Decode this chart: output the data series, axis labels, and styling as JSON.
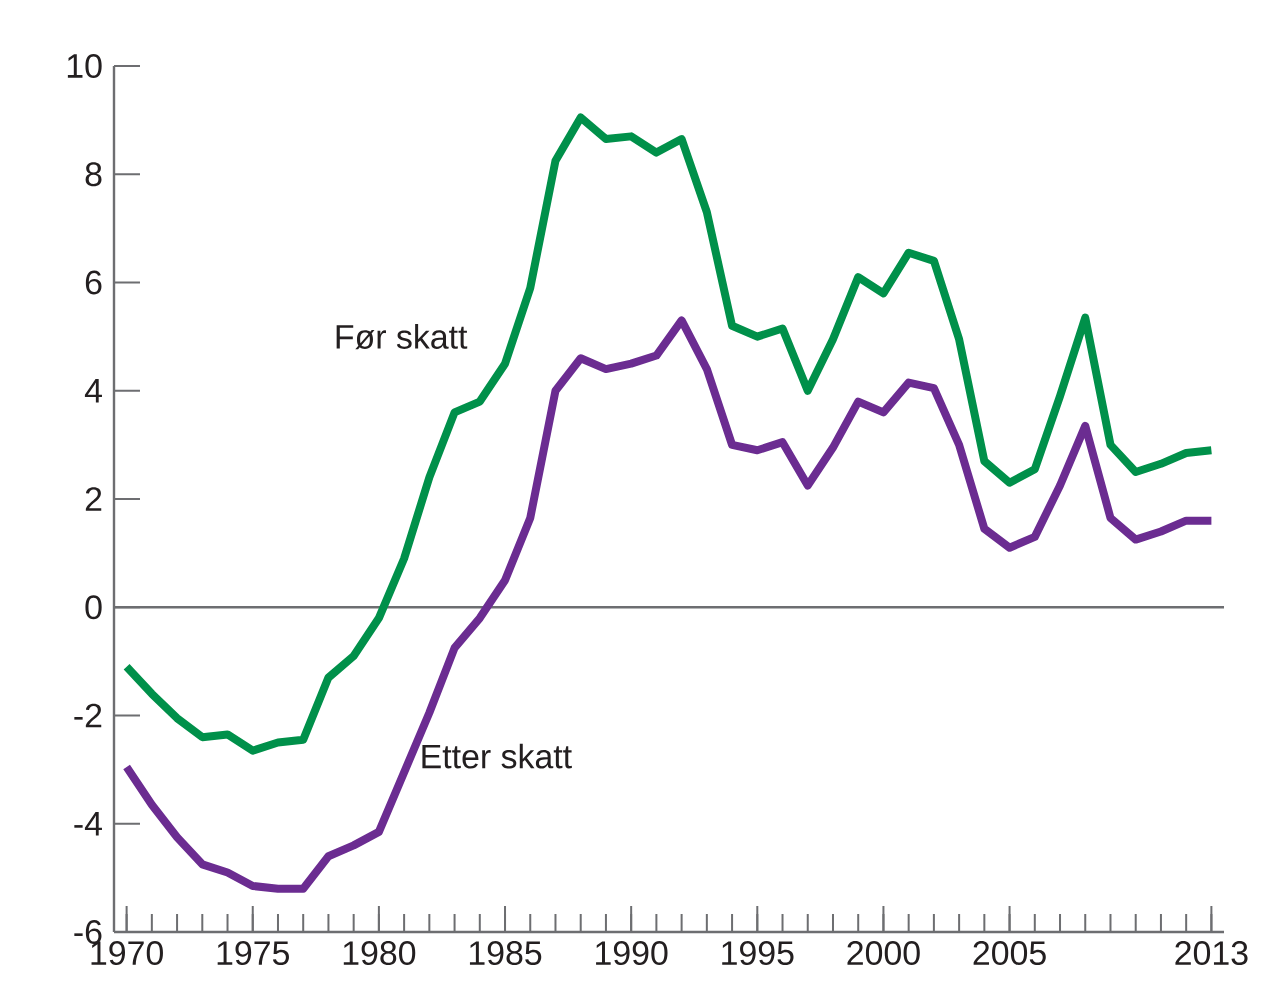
{
  "chart_data": {
    "type": "line",
    "x": [
      1970,
      1971,
      1972,
      1973,
      1974,
      1975,
      1976,
      1977,
      1978,
      1979,
      1980,
      1981,
      1982,
      1983,
      1984,
      1985,
      1986,
      1987,
      1988,
      1989,
      1990,
      1991,
      1992,
      1993,
      1994,
      1995,
      1996,
      1997,
      1998,
      1999,
      2000,
      2001,
      2002,
      2003,
      2004,
      2005,
      2006,
      2007,
      2008,
      2009,
      2010,
      2011,
      2012,
      2013
    ],
    "series": [
      {
        "name": "Før skatt",
        "color": "#00904a",
        "values": [
          -1.1,
          -1.6,
          -2.05,
          -2.4,
          -2.35,
          -2.65,
          -2.5,
          -2.45,
          -1.3,
          -0.9,
          -0.2,
          0.9,
          2.4,
          3.6,
          3.8,
          4.5,
          5.9,
          8.25,
          9.05,
          8.65,
          8.7,
          8.4,
          8.65,
          7.3,
          5.2,
          5.0,
          5.15,
          4.0,
          4.95,
          6.1,
          5.8,
          6.55,
          6.4,
          4.95,
          2.7,
          2.3,
          2.55,
          3.9,
          5.35,
          3.0,
          2.5,
          2.65,
          2.85,
          2.9
        ]
      },
      {
        "name": "Etter skatt",
        "color": "#6b2c91",
        "values": [
          -2.95,
          -3.65,
          -4.25,
          -4.75,
          -4.9,
          -5.15,
          -5.2,
          -5.2,
          -4.6,
          -4.4,
          -4.15,
          -3.05,
          -1.95,
          -0.75,
          -0.2,
          0.5,
          1.65,
          4.0,
          4.6,
          4.4,
          4.5,
          4.65,
          5.3,
          4.4,
          3.0,
          2.9,
          3.05,
          2.25,
          2.95,
          3.8,
          3.6,
          4.15,
          4.05,
          3.0,
          1.45,
          1.1,
          1.3,
          2.25,
          3.35,
          1.65,
          1.25,
          1.4,
          1.6,
          1.6
        ]
      }
    ],
    "xlim": [
      1969.5,
      2013.5
    ],
    "xticks": [
      1970,
      1975,
      1980,
      1985,
      1990,
      1995,
      2000,
      2005,
      2013
    ],
    "ylim": [
      -6,
      10
    ],
    "yticks": [
      -6,
      -4,
      -2,
      0,
      2,
      4,
      6,
      8,
      10
    ],
    "ref_lines": [
      {
        "axis": "y",
        "value": 0,
        "color": "#6d6e71"
      }
    ]
  }
}
